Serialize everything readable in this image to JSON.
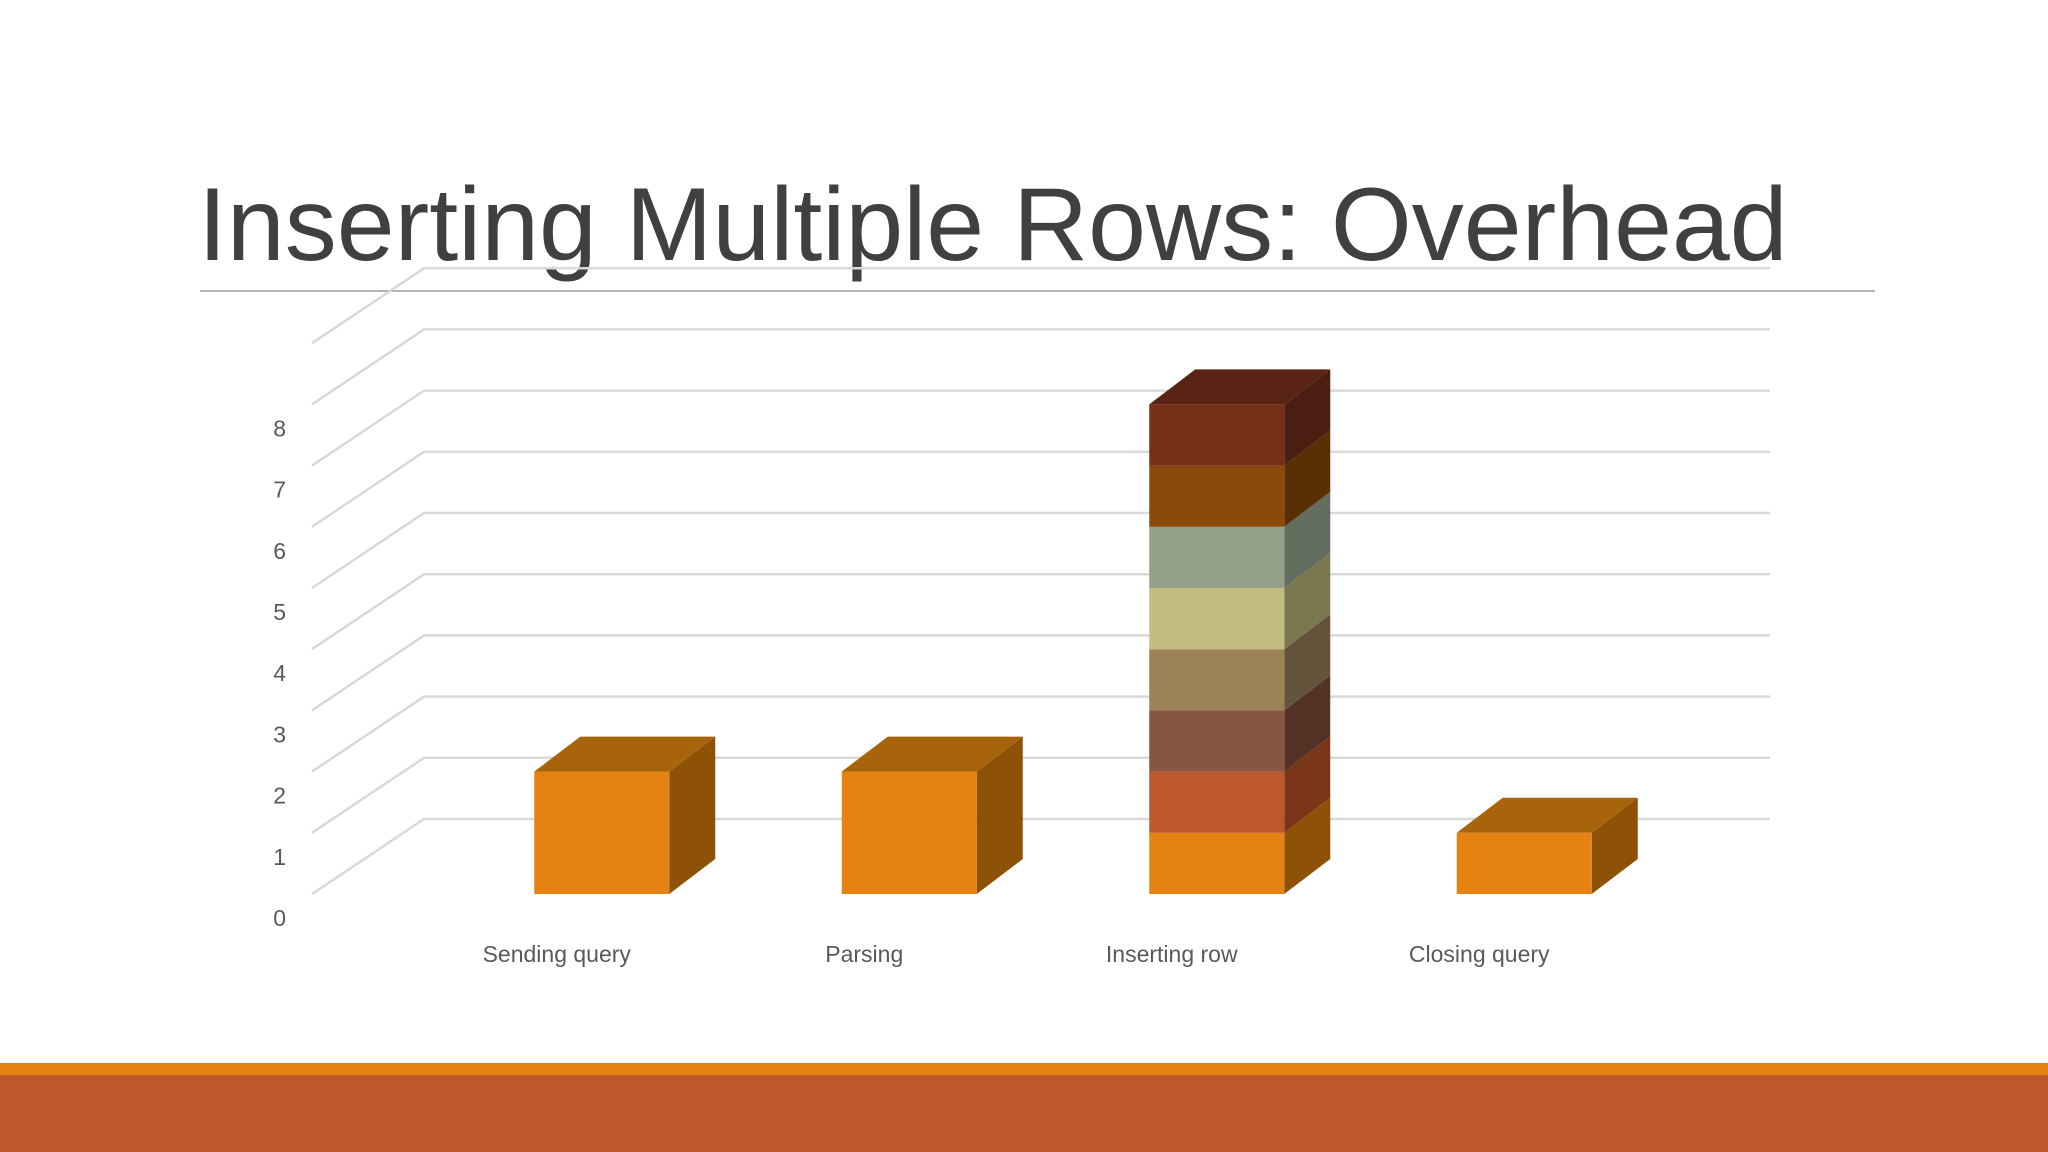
{
  "slide": {
    "title": "Inserting Multiple Rows: Overhead"
  },
  "theme": {
    "title_color": "#404040",
    "gridline_color": "#d9d9d9",
    "footer_stripe_color": "#e48312",
    "footer_band_color": "#bd582c"
  },
  "chart_data": {
    "type": "bar",
    "stacked": true,
    "three_d": true,
    "categories": [
      "Sending query",
      "Parsing",
      "Inserting row",
      "Closing query"
    ],
    "series": [
      {
        "color": "#e48312",
        "side": "#8e5207",
        "top": "#a8640a",
        "values": [
          2,
          2,
          1,
          1
        ]
      },
      {
        "color": "#bd582c",
        "side": "#7a3618",
        "top": "#9a4520",
        "values": [
          0,
          0,
          1,
          0
        ]
      },
      {
        "color": "#865640",
        "side": "#553226",
        "top": "#6a4232",
        "values": [
          0,
          0,
          1,
          0
        ]
      },
      {
        "color": "#9b8357",
        "side": "#62533a",
        "top": "#7d6a46",
        "values": [
          0,
          0,
          1,
          0
        ]
      },
      {
        "color": "#c2bc80",
        "side": "#7b7850",
        "top": "#9c9868",
        "values": [
          0,
          0,
          1,
          0
        ]
      },
      {
        "color": "#94a088",
        "side": "#646e5e",
        "top": "#7a8570",
        "values": [
          0,
          0,
          1,
          0
        ]
      },
      {
        "color": "#8b4a0c",
        "side": "#583004",
        "top": "#6e3b08",
        "values": [
          0,
          0,
          1,
          0
        ]
      },
      {
        "color": "#763017",
        "side": "#4a1e10",
        "top": "#5a2414",
        "values": [
          0,
          0,
          1,
          0
        ]
      }
    ],
    "y_ticks": [
      0,
      1,
      2,
      3,
      4,
      5,
      6,
      7,
      8
    ],
    "ylim": [
      0,
      9
    ],
    "grid": true,
    "legend": "none",
    "xlabel": "",
    "ylabel": ""
  }
}
